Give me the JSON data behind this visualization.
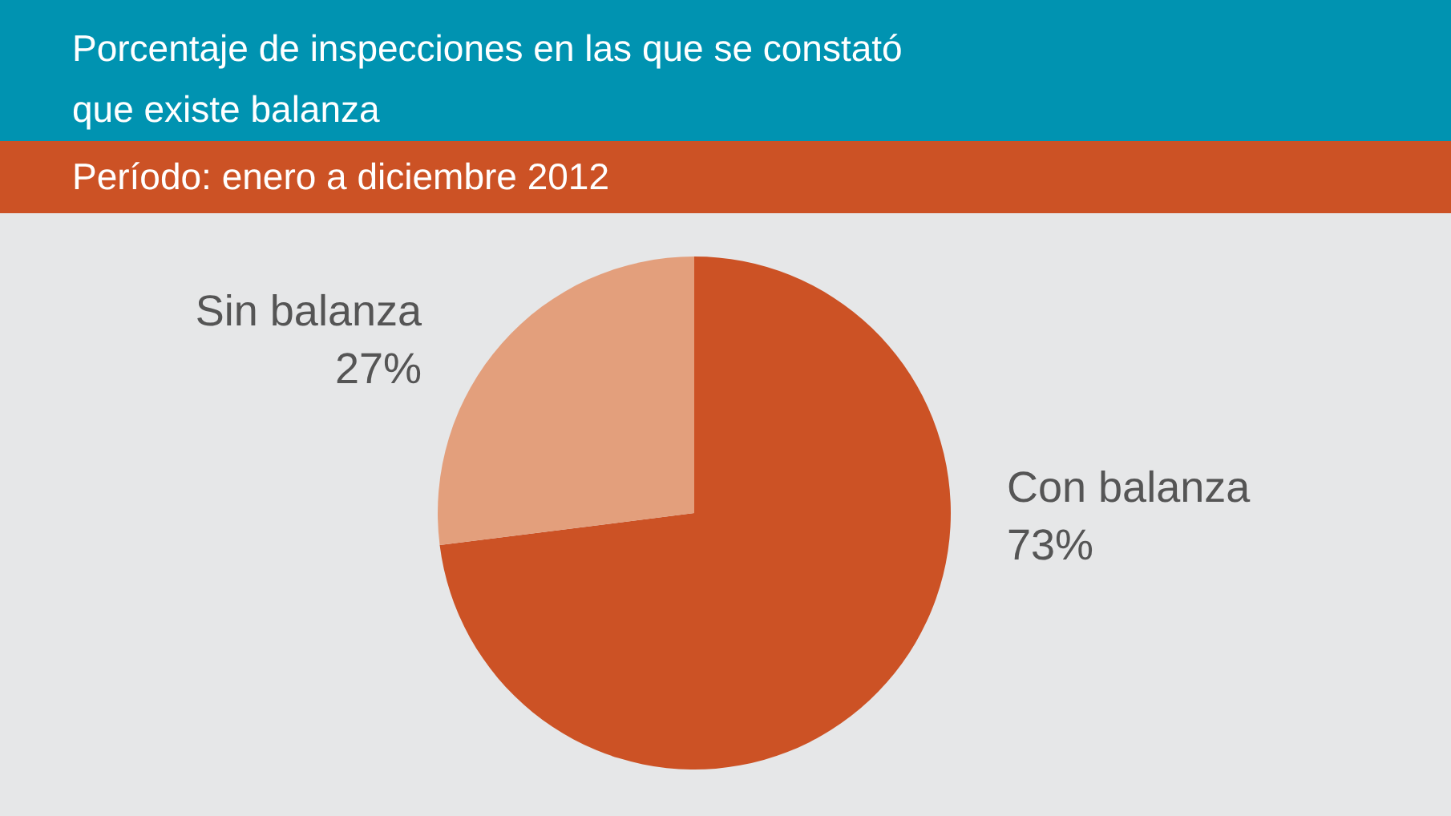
{
  "chart_data": {
    "type": "pie",
    "title": "Porcentaje de inspecciones en las que se constató\nque existe balanza",
    "subtitle": "Período: enero a diciembre 2012",
    "categories": [
      "Con balanza",
      "Sin balanza"
    ],
    "values": [
      73,
      27
    ],
    "value_labels": [
      "73%",
      "27%"
    ],
    "colors": [
      "#cc5225",
      "#e39f7c"
    ],
    "legend": false
  }
}
